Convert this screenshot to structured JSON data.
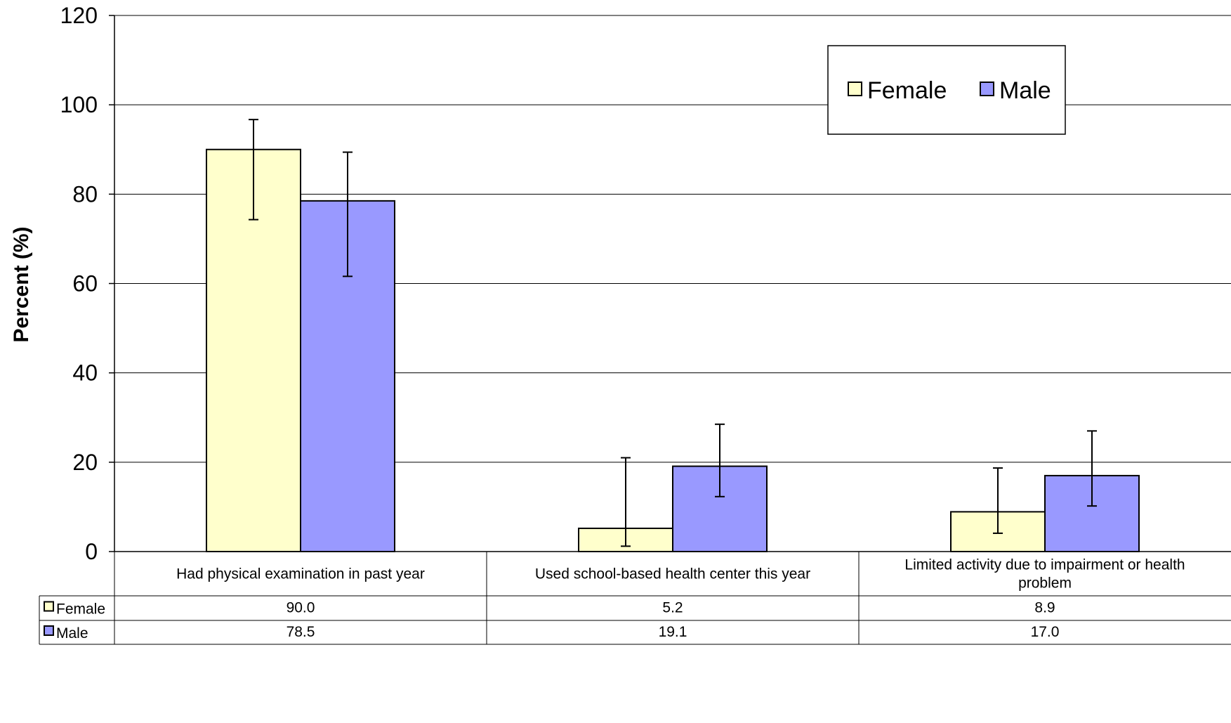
{
  "chart_data": {
    "type": "bar",
    "title": "",
    "xlabel": "",
    "ylabel": "Percent (%)",
    "ylim": [
      0,
      120
    ],
    "yticks": [
      0,
      20,
      40,
      60,
      80,
      100,
      120
    ],
    "grid": true,
    "legend_position": "top-right",
    "categories": [
      "Had physical examination in past year",
      "Used school-based health center this year",
      "Limited activity due to impairment or health problem"
    ],
    "series": [
      {
        "name": "Female",
        "color": "#FFFFCC",
        "values": [
          90.0,
          5.2,
          8.9
        ],
        "value_labels": [
          "90.0",
          "5.2",
          "8.9"
        ],
        "error_low": [
          74.3,
          1.2,
          4.1
        ],
        "error_high": [
          96.7,
          21.0,
          18.7
        ]
      },
      {
        "name": "Male",
        "color": "#9999FF",
        "values": [
          78.5,
          19.1,
          17.0
        ],
        "value_labels": [
          "78.5",
          "19.1",
          "17.0"
        ],
        "error_low": [
          61.6,
          12.3,
          10.2
        ],
        "error_high": [
          89.4,
          28.5,
          27.0
        ]
      }
    ]
  }
}
